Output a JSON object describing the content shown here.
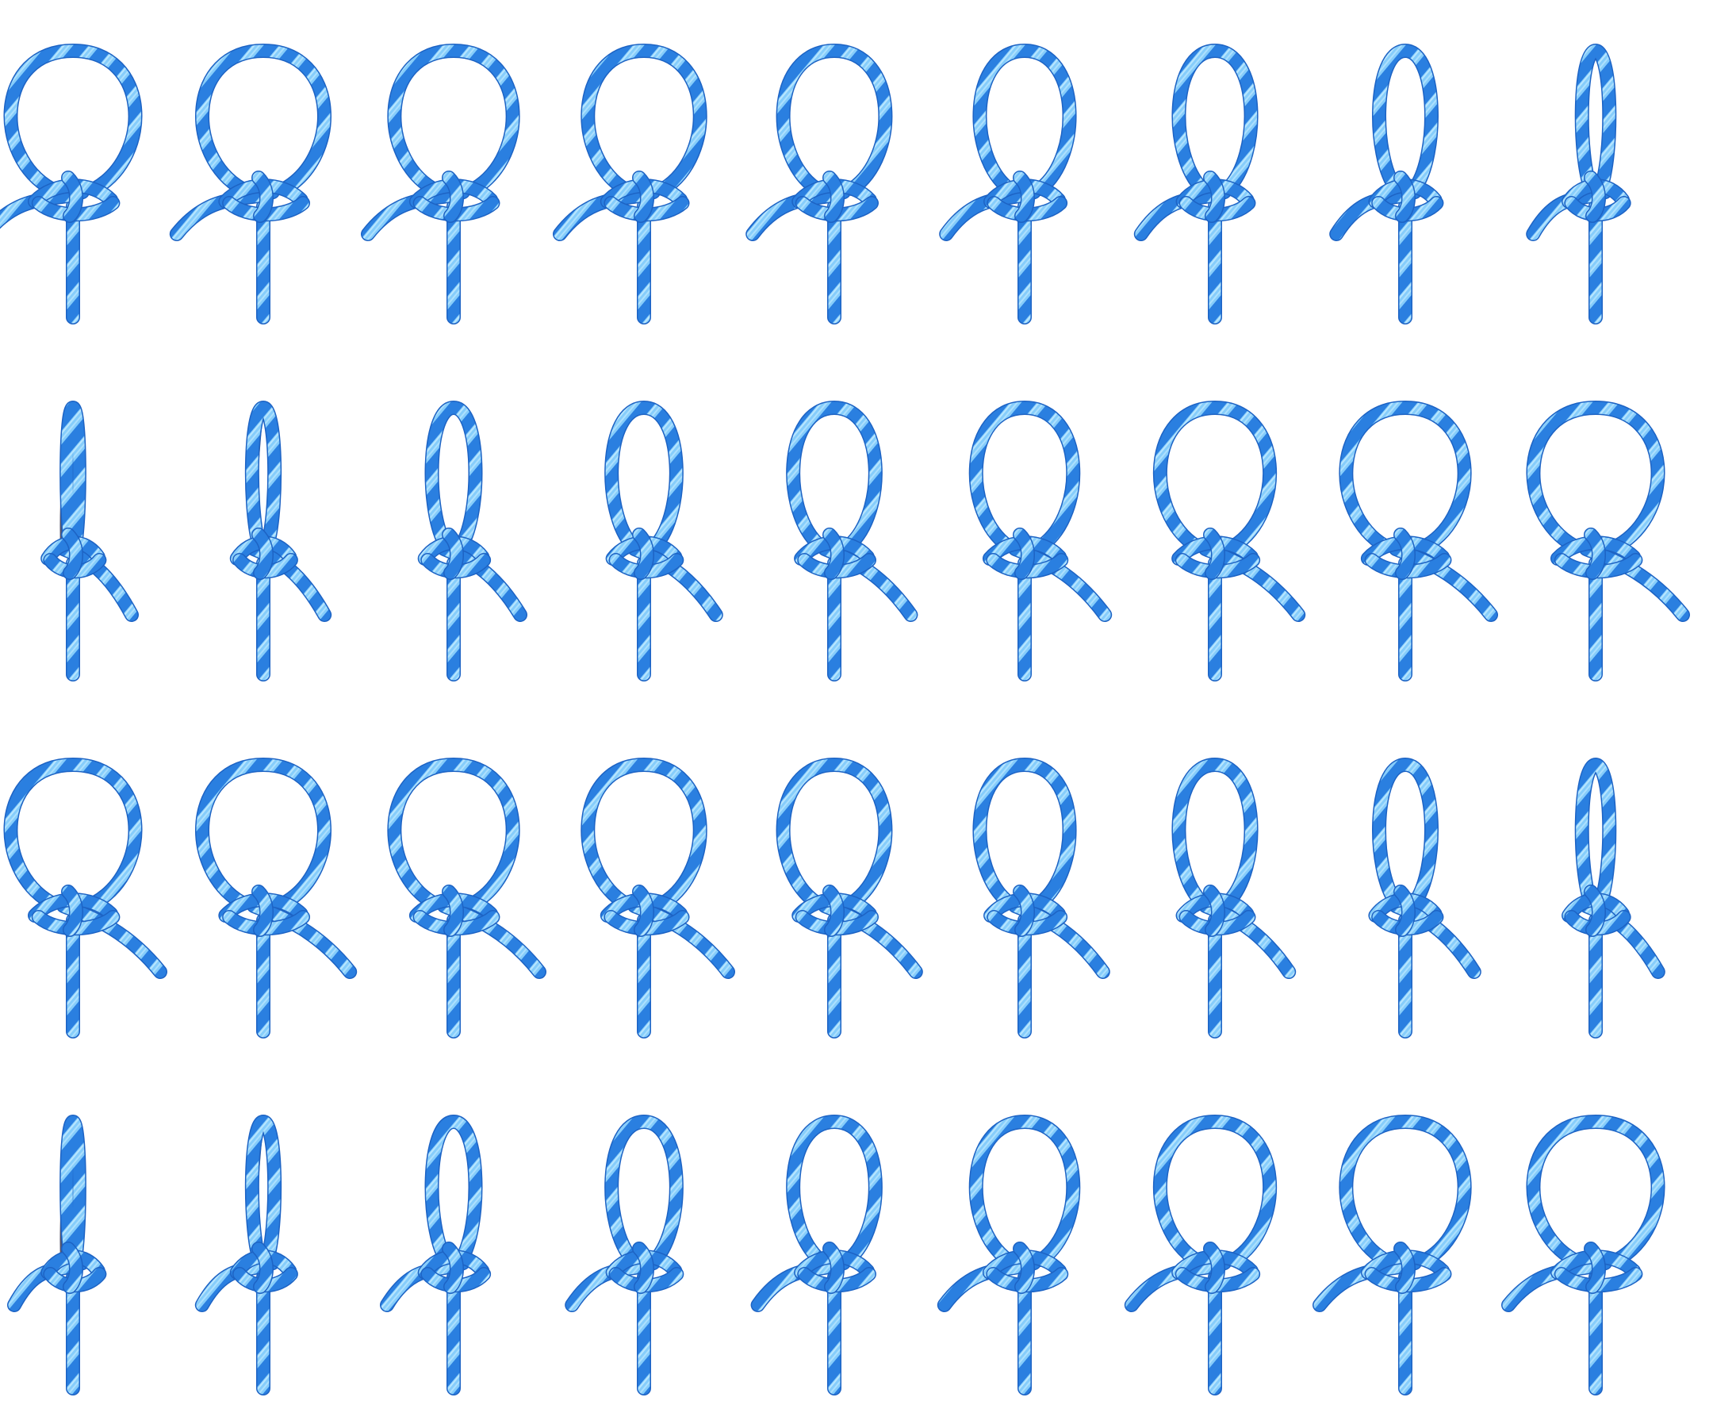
{
  "sequence": {
    "rows": 4,
    "cols": 9,
    "colors": {
      "rope": "#2a7fe0",
      "rope_dark": "#1d63c4",
      "stripe": "#8fd2ff",
      "shadow": "#1b1b3a",
      "background": "#ffffff"
    },
    "frames": [
      {
        "row": 0,
        "col": 0,
        "pose": "wide-loop-knot",
        "mirrored": false,
        "aspect": 1.0
      },
      {
        "row": 0,
        "col": 1,
        "pose": "wide-loop-knot",
        "mirrored": false,
        "aspect": 0.98
      },
      {
        "row": 0,
        "col": 2,
        "pose": "wide-loop-knot",
        "mirrored": false,
        "aspect": 0.95
      },
      {
        "row": 0,
        "col": 3,
        "pose": "wide-loop-knot",
        "mirrored": false,
        "aspect": 0.9
      },
      {
        "row": 0,
        "col": 4,
        "pose": "wide-loop-knot",
        "mirrored": false,
        "aspect": 0.82
      },
      {
        "row": 0,
        "col": 5,
        "pose": "wide-loop-knot",
        "mirrored": false,
        "aspect": 0.72
      },
      {
        "row": 0,
        "col": 6,
        "pose": "wide-loop-knot",
        "mirrored": false,
        "aspect": 0.58
      },
      {
        "row": 0,
        "col": 7,
        "pose": "wide-loop-knot",
        "mirrored": false,
        "aspect": 0.42
      },
      {
        "row": 0,
        "col": 8,
        "pose": "wide-loop-knot",
        "mirrored": false,
        "aspect": 0.22
      },
      {
        "row": 1,
        "col": 0,
        "pose": "edge-on-loop",
        "mirrored": true,
        "aspect": 0.1
      },
      {
        "row": 1,
        "col": 1,
        "pose": "edge-on-loop",
        "mirrored": true,
        "aspect": 0.18
      },
      {
        "row": 1,
        "col": 2,
        "pose": "wide-loop-knot",
        "mirrored": true,
        "aspect": 0.35
      },
      {
        "row": 1,
        "col": 3,
        "pose": "wide-loop-knot",
        "mirrored": true,
        "aspect": 0.52
      },
      {
        "row": 1,
        "col": 4,
        "pose": "wide-loop-knot",
        "mirrored": true,
        "aspect": 0.66
      },
      {
        "row": 1,
        "col": 5,
        "pose": "wide-loop-knot",
        "mirrored": true,
        "aspect": 0.78
      },
      {
        "row": 1,
        "col": 6,
        "pose": "wide-loop-knot",
        "mirrored": true,
        "aspect": 0.88
      },
      {
        "row": 1,
        "col": 7,
        "pose": "wide-loop-knot",
        "mirrored": true,
        "aspect": 0.95
      },
      {
        "row": 1,
        "col": 8,
        "pose": "wide-loop-knot",
        "mirrored": true,
        "aspect": 1.0
      },
      {
        "row": 2,
        "col": 0,
        "pose": "wide-loop-knot",
        "mirrored": true,
        "aspect": 1.0
      },
      {
        "row": 2,
        "col": 1,
        "pose": "wide-loop-knot",
        "mirrored": true,
        "aspect": 0.98
      },
      {
        "row": 2,
        "col": 2,
        "pose": "wide-loop-knot",
        "mirrored": true,
        "aspect": 0.95
      },
      {
        "row": 2,
        "col": 3,
        "pose": "wide-loop-knot",
        "mirrored": true,
        "aspect": 0.9
      },
      {
        "row": 2,
        "col": 4,
        "pose": "wide-loop-knot",
        "mirrored": true,
        "aspect": 0.82
      },
      {
        "row": 2,
        "col": 5,
        "pose": "wide-loop-knot",
        "mirrored": true,
        "aspect": 0.72
      },
      {
        "row": 2,
        "col": 6,
        "pose": "wide-loop-knot",
        "mirrored": true,
        "aspect": 0.58
      },
      {
        "row": 2,
        "col": 7,
        "pose": "wide-loop-knot",
        "mirrored": true,
        "aspect": 0.42
      },
      {
        "row": 2,
        "col": 8,
        "pose": "wide-loop-knot",
        "mirrored": true,
        "aspect": 0.22
      },
      {
        "row": 3,
        "col": 0,
        "pose": "edge-on-loop",
        "mirrored": false,
        "aspect": 0.1
      },
      {
        "row": 3,
        "col": 1,
        "pose": "edge-on-loop",
        "mirrored": false,
        "aspect": 0.18
      },
      {
        "row": 3,
        "col": 2,
        "pose": "wide-loop-knot",
        "mirrored": false,
        "aspect": 0.35
      },
      {
        "row": 3,
        "col": 3,
        "pose": "wide-loop-knot",
        "mirrored": false,
        "aspect": 0.52
      },
      {
        "row": 3,
        "col": 4,
        "pose": "wide-loop-knot",
        "mirrored": false,
        "aspect": 0.66
      },
      {
        "row": 3,
        "col": 5,
        "pose": "wide-loop-knot",
        "mirrored": false,
        "aspect": 0.78
      },
      {
        "row": 3,
        "col": 6,
        "pose": "wide-loop-knot",
        "mirrored": false,
        "aspect": 0.88
      },
      {
        "row": 3,
        "col": 7,
        "pose": "wide-loop-knot",
        "mirrored": false,
        "aspect": 0.95
      },
      {
        "row": 3,
        "col": 8,
        "pose": "wide-loop-knot",
        "mirrored": false,
        "aspect": 1.0
      }
    ]
  }
}
